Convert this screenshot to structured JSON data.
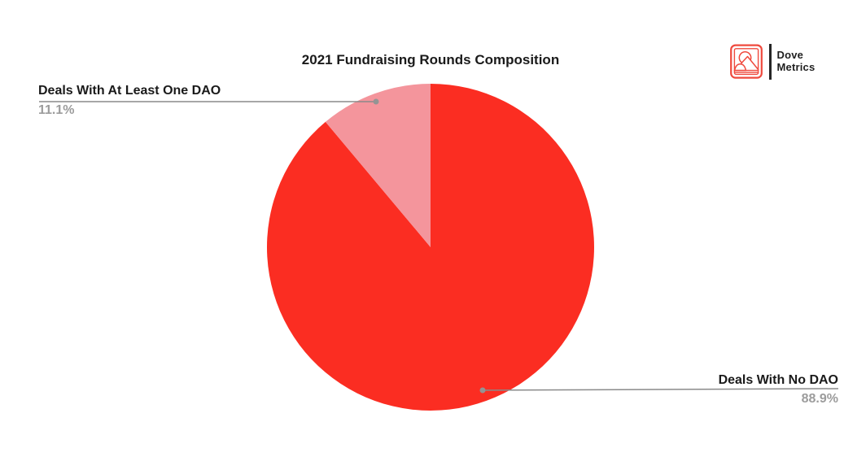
{
  "chart_data": {
    "type": "pie",
    "title": "2021 Fundraising Rounds Composition",
    "slices": [
      {
        "label": "Deals With No DAO",
        "value": 88.9,
        "display": "88.9%",
        "color": "#fb2d22"
      },
      {
        "label": "Deals With At Least One DAO",
        "value": 11.1,
        "display": "11.1%",
        "color": "#f4959c"
      }
    ],
    "start_angle": "12 o'clock",
    "direction": "clockwise",
    "legend_position": "callout-leader-lines",
    "background": "#ffffff",
    "label_color": "#1a1a1a",
    "percent_color": "#9c9c9c",
    "leader_line_color": "#8a8a8a"
  },
  "logo": {
    "line1": "Dove",
    "line2": "Metrics",
    "icon": "mountain-sun-landscape-icon",
    "icon_color": "#ef4a3e",
    "text_color": "#1f1f1f"
  }
}
